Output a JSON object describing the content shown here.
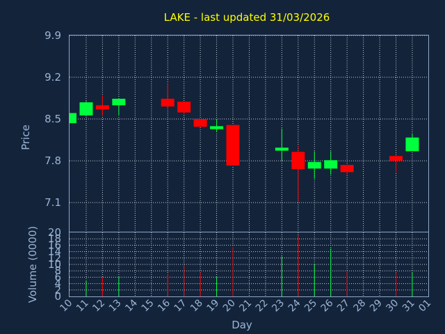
{
  "title": "LAKE - last updated 31/03/2026",
  "colors": {
    "background": "#13233a",
    "up": "#00ff3c",
    "down": "#ff0000",
    "text": "#9bb6d6",
    "title": "#ffff00",
    "frame": "#8fa8c8"
  },
  "chart_data": [
    {
      "type": "candlestick",
      "ylabel": "Price",
      "ylim": [
        6.6,
        9.9
      ],
      "yticks": [
        "9.9",
        "9.2",
        "8.5",
        "7.8",
        "7.1"
      ],
      "ytick_values": [
        9.9,
        9.2,
        8.5,
        7.8,
        7.1
      ],
      "grid": true,
      "candles": [
        {
          "day": "10",
          "open": 8.43,
          "high": 8.6,
          "low": 8.43,
          "close": 8.6
        },
        {
          "day": "11",
          "open": 8.56,
          "high": 8.8,
          "low": 8.55,
          "close": 8.78
        },
        {
          "day": "12",
          "open": 8.73,
          "high": 8.89,
          "low": 8.56,
          "close": 8.66
        },
        {
          "day": "13",
          "open": 8.73,
          "high": 8.85,
          "low": 8.56,
          "close": 8.84
        },
        {
          "day": "16",
          "open": 8.84,
          "high": 9.1,
          "low": 8.66,
          "close": 8.71
        },
        {
          "day": "17",
          "open": 8.79,
          "high": 8.79,
          "low": 8.59,
          "close": 8.61
        },
        {
          "day": "18",
          "open": 8.5,
          "high": 8.5,
          "low": 8.37,
          "close": 8.37
        },
        {
          "day": "19",
          "open": 8.33,
          "high": 8.5,
          "low": 8.28,
          "close": 8.38
        },
        {
          "day": "20",
          "open": 8.4,
          "high": 8.4,
          "low": 7.72,
          "close": 7.72
        },
        {
          "day": "23",
          "open": 7.97,
          "high": 8.34,
          "low": 7.8,
          "close": 8.02
        },
        {
          "day": "24",
          "open": 7.95,
          "high": 8.05,
          "low": 7.11,
          "close": 7.66
        },
        {
          "day": "25",
          "open": 7.67,
          "high": 7.96,
          "low": 7.5,
          "close": 7.78
        },
        {
          "day": "26",
          "open": 7.67,
          "high": 7.96,
          "low": 7.57,
          "close": 7.81
        },
        {
          "day": "27",
          "open": 7.73,
          "high": 7.74,
          "low": 7.57,
          "close": 7.61
        },
        {
          "day": "30",
          "open": 7.88,
          "high": 7.88,
          "low": 7.6,
          "close": 7.8
        },
        {
          "day": "31",
          "open": 7.96,
          "high": 8.26,
          "low": 7.96,
          "close": 8.19
        }
      ]
    },
    {
      "type": "bar",
      "ylabel": "Volume (0000)",
      "xlabel": "Day",
      "ylim": [
        0,
        20
      ],
      "yticks": [
        "20",
        "18",
        "16",
        "14",
        "12",
        "10",
        "8",
        "6",
        "4",
        "2",
        "0"
      ],
      "ytick_values": [
        20,
        18,
        16,
        14,
        12,
        10,
        8,
        6,
        4,
        2,
        0
      ],
      "categories": [
        "10",
        "11",
        "12",
        "13",
        "14",
        "15",
        "16",
        "17",
        "18",
        "19",
        "20",
        "21",
        "22",
        "23",
        "24",
        "25",
        "26",
        "27",
        "28",
        "29",
        "30",
        "31",
        "01"
      ],
      "volumes": [
        {
          "day": "11",
          "value": 5,
          "dir": "up"
        },
        {
          "day": "12",
          "value": 6,
          "dir": "down"
        },
        {
          "day": "13",
          "value": 6,
          "dir": "up"
        },
        {
          "day": "16",
          "value": 7,
          "dir": "down"
        },
        {
          "day": "17",
          "value": 9.5,
          "dir": "down"
        },
        {
          "day": "18",
          "value": 7.5,
          "dir": "down"
        },
        {
          "day": "19",
          "value": 6,
          "dir": "up"
        },
        {
          "day": "20",
          "value": 15.5,
          "dir": "down"
        },
        {
          "day": "23",
          "value": 12.5,
          "dir": "up"
        },
        {
          "day": "24",
          "value": 19,
          "dir": "down"
        },
        {
          "day": "25",
          "value": 10,
          "dir": "up"
        },
        {
          "day": "26",
          "value": 15,
          "dir": "up"
        },
        {
          "day": "27",
          "value": 8,
          "dir": "down"
        },
        {
          "day": "30",
          "value": 7.5,
          "dir": "down"
        },
        {
          "day": "31",
          "value": 7.5,
          "dir": "up"
        }
      ]
    }
  ]
}
